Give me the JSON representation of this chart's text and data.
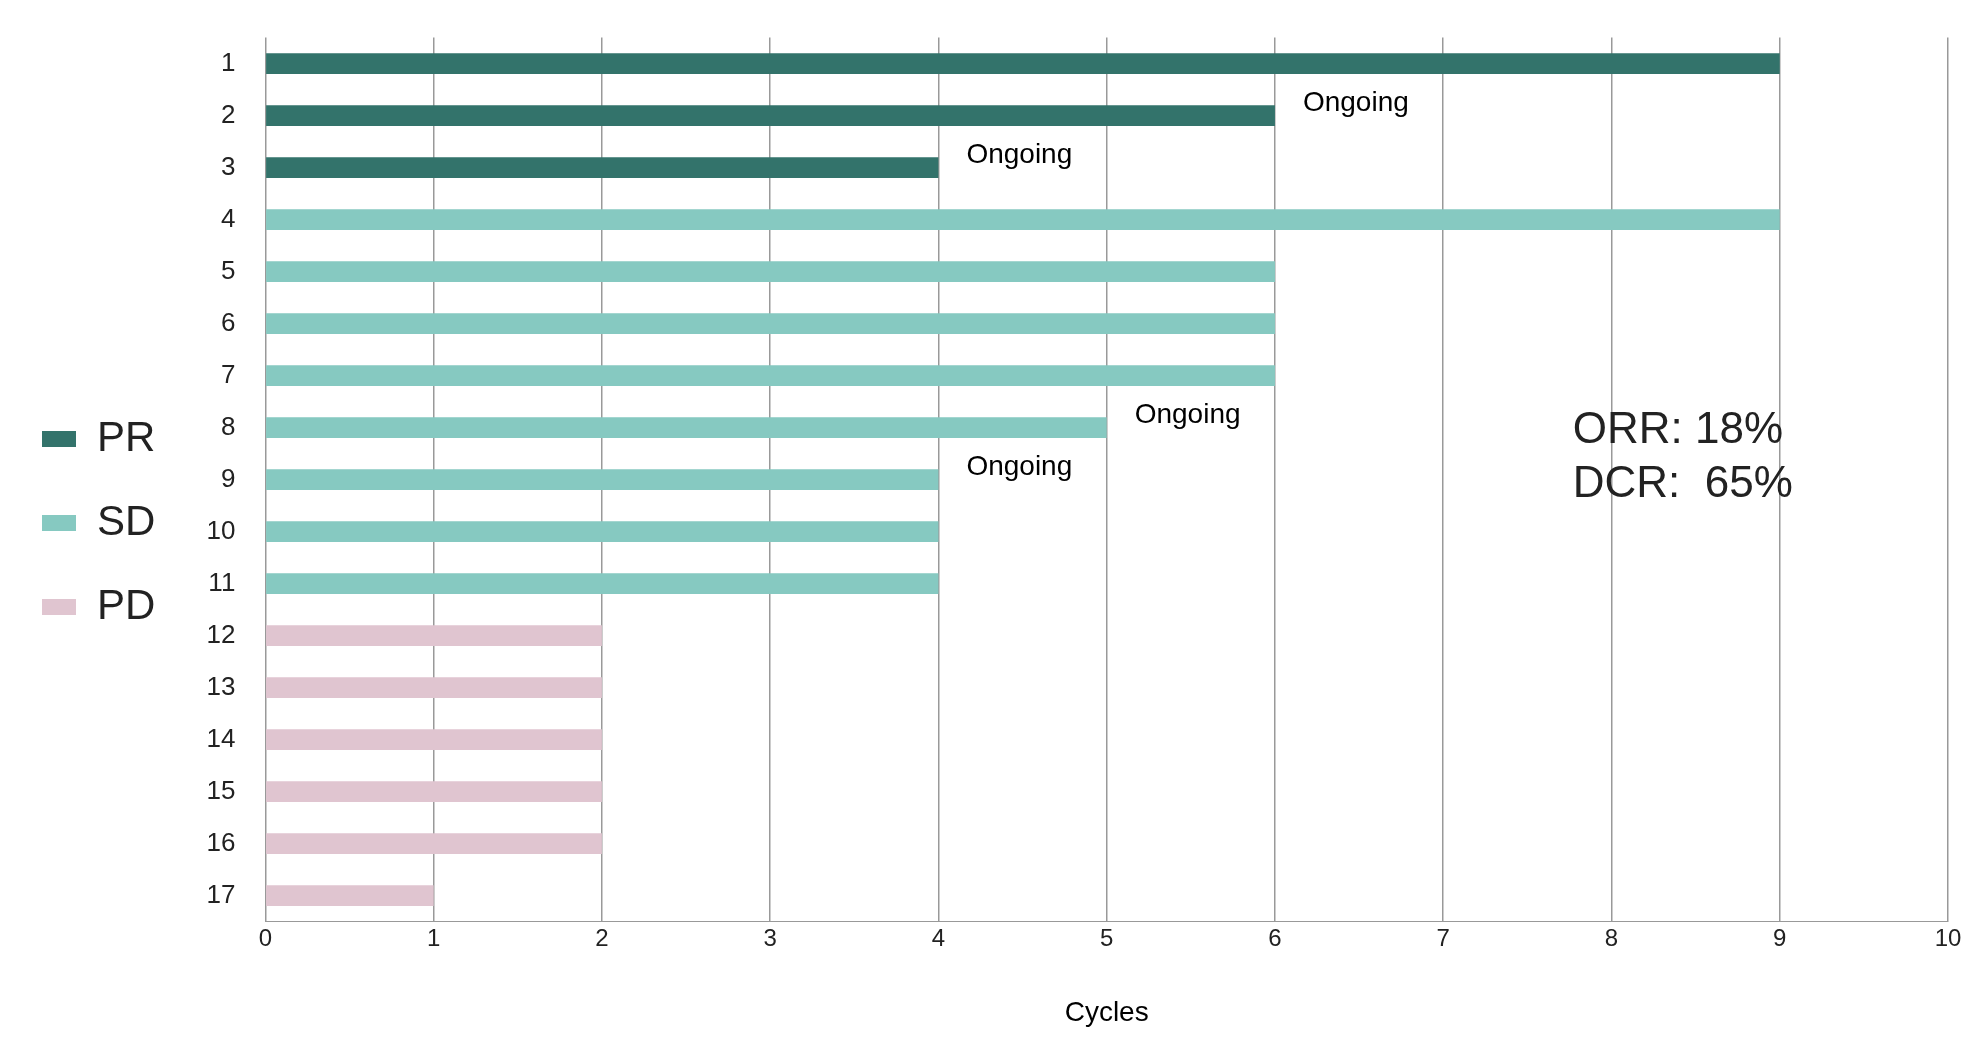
{
  "chart_data": {
    "type": "bar",
    "orientation": "horizontal",
    "stacked": true,
    "xlabel": "Cycles",
    "categories": [
      "1",
      "2",
      "3",
      "4",
      "5",
      "6",
      "7",
      "8",
      "9",
      "10",
      "11",
      "12",
      "13",
      "14",
      "15",
      "16",
      "17"
    ],
    "series": [
      {
        "name": "PR",
        "color": "#33736b",
        "values": [
          9,
          6,
          4,
          null,
          null,
          null,
          null,
          null,
          null,
          null,
          null,
          null,
          null,
          null,
          null,
          null,
          null
        ]
      },
      {
        "name": "SD",
        "color": "#86c9c1",
        "values": [
          null,
          null,
          null,
          9,
          6,
          6,
          6,
          5,
          4,
          4,
          4,
          null,
          null,
          null,
          null,
          null,
          null
        ]
      },
      {
        "name": "PD",
        "color": "#e0c5d0",
        "values": [
          null,
          null,
          null,
          null,
          null,
          null,
          null,
          null,
          null,
          null,
          null,
          2,
          2,
          2,
          2,
          2,
          1
        ]
      }
    ],
    "xlim": [
      0,
      10
    ],
    "xticks": [
      0,
      1,
      2,
      3,
      4,
      5,
      6,
      7,
      8,
      9,
      10
    ],
    "grid": "x",
    "legend": "left",
    "annotations": [
      {
        "text": "Ongoing",
        "x": 6,
        "y": "2"
      },
      {
        "text": "Ongoing",
        "x": 4,
        "y": "3"
      },
      {
        "text": "Ongoing",
        "x": 5,
        "y": "8"
      },
      {
        "text": "Ongoing",
        "x": 4,
        "y": "9"
      },
      "ORR: 18%",
      "DCR:  65%"
    ]
  }
}
